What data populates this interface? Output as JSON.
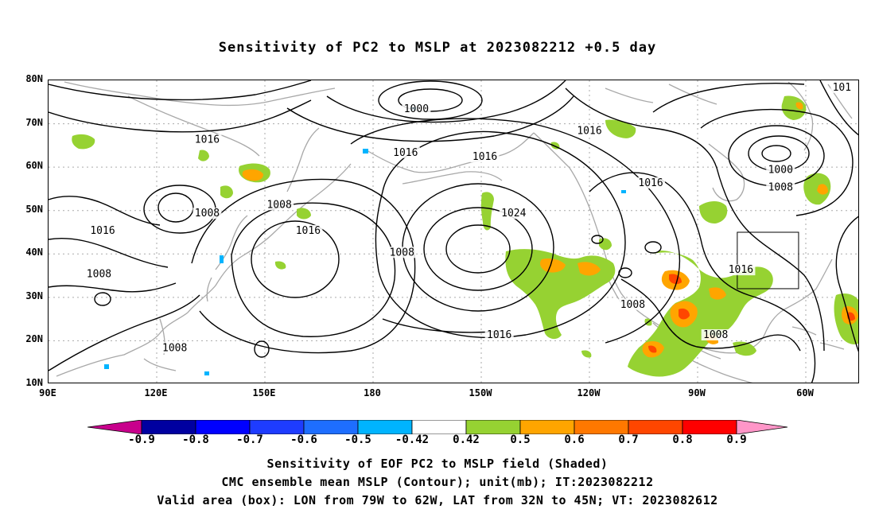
{
  "title": "Sensitivity of PC2 to MSLP at 2023082212 +0.5 day",
  "y_ticks": [
    "80N",
    "70N",
    "60N",
    "50N",
    "40N",
    "30N",
    "20N",
    "10N"
  ],
  "x_ticks": [
    "90E",
    "120E",
    "150E",
    "180",
    "150W",
    "120W",
    "90W",
    "60W"
  ],
  "contour_labels": [
    {
      "text": "1000",
      "lon": -168,
      "lat": 73
    },
    {
      "text": "1016",
      "lon": 134,
      "lat": 66
    },
    {
      "text": "1016",
      "lon": -171,
      "lat": 63
    },
    {
      "text": "1016",
      "lon": -149,
      "lat": 62
    },
    {
      "text": "1016",
      "lon": -120,
      "lat": 68
    },
    {
      "text": "1016",
      "lon": -103,
      "lat": 56
    },
    {
      "text": "1000",
      "lon": -67,
      "lat": 59
    },
    {
      "text": "1008",
      "lon": -67,
      "lat": 55
    },
    {
      "text": "1008",
      "lon": 154,
      "lat": 51
    },
    {
      "text": "1008",
      "lon": 134,
      "lat": 49
    },
    {
      "text": "1016",
      "lon": 105,
      "lat": 45
    },
    {
      "text": "1016",
      "lon": 162,
      "lat": 45
    },
    {
      "text": "1024",
      "lon": -141,
      "lat": 49
    },
    {
      "text": "1008",
      "lon": -172,
      "lat": 40
    },
    {
      "text": "1008",
      "lon": 104,
      "lat": 35
    },
    {
      "text": "1016",
      "lon": -78,
      "lat": 36
    },
    {
      "text": "1008",
      "lon": -108,
      "lat": 28
    },
    {
      "text": "1016",
      "lon": -145,
      "lat": 21
    },
    {
      "text": "1008",
      "lon": -85,
      "lat": 21
    },
    {
      "text": "1008",
      "lon": 125,
      "lat": 18
    },
    {
      "text": "101",
      "lon": -50,
      "lat": 78
    }
  ],
  "valid_box": {
    "lon_min": -79,
    "lon_max": -62,
    "lat_min": 32,
    "lat_max": 45
  },
  "colorbar": {
    "labels": [
      "-0.9",
      "-0.8",
      "-0.7",
      "-0.6",
      "-0.5",
      "-0.42",
      "0.42",
      "0.5",
      "0.6",
      "0.7",
      "0.8",
      "0.9"
    ],
    "colors": [
      "#0000a0",
      "#0000ff",
      "#1e3cff",
      "#1e6eff",
      "#00b4ff",
      "#ffffff",
      "#96d232",
      "#ffa500",
      "#ff7800",
      "#ff4600",
      "#ff0000"
    ],
    "low_end_color": "#c8008c",
    "high_end_color": "#ff96c8"
  },
  "captions": [
    "Sensitivity of EOF PC2 to MSLP field (Shaded)",
    "CMC ensemble mean MSLP (Contour); unit(mb); IT:2023082212",
    "Valid area (box): LON from 79W to 62W, LAT from 32N to 45N; VT: 2023082612"
  ]
}
